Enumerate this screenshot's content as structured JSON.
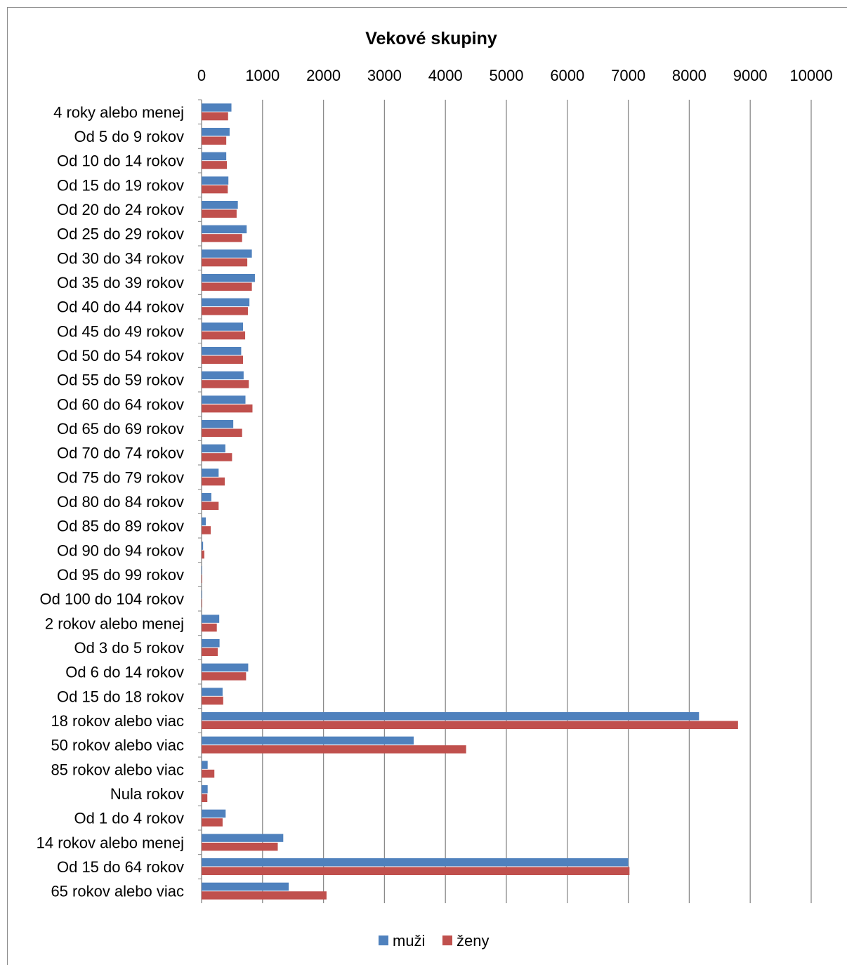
{
  "chart_data": {
    "type": "bar",
    "orientation": "horizontal",
    "title": "Vekové skupiny",
    "xlabel": "",
    "ylabel": "",
    "xlim": [
      0,
      10000
    ],
    "x_ticks": [
      "0",
      "1000",
      "2000",
      "3000",
      "4000",
      "5000",
      "6000",
      "7000",
      "8000",
      "9000",
      "10000"
    ],
    "grid": true,
    "legend_position": "bottom",
    "categories": [
      "4 roky alebo menej",
      "Od 5 do 9 rokov",
      "Od 10 do 14 rokov",
      "Od 15 do 19 rokov",
      "Od 20 do 24 rokov",
      "Od 25 do 29 rokov",
      "Od 30 do 34 rokov",
      "Od 35 do 39 rokov",
      "Od 40 do 44 rokov",
      "Od 45 do 49 rokov",
      "Od 50 do 54 rokov",
      "Od 55 do 59 rokov",
      "Od 60 do 64 rokov",
      "Od 65 do 69 rokov",
      "Od 70 do 74 rokov",
      "Od 75 do 79 rokov",
      "Od 80 do 84 rokov",
      "Od 85 do 89 rokov",
      "Od 90 do 94 rokov",
      "Od 95 do 99 rokov",
      "Od 100 do 104 rokov",
      "2 rokov alebo menej",
      "Od 3 do 5 rokov",
      "Od 6 do 14 rokov",
      "Od 15 do 18 rokov",
      "18 rokov alebo viac",
      "50 rokov alebo viac",
      "85 rokov alebo viac",
      "Nula rokov",
      "Od 1 do 4 rokov",
      "14 rokov alebo menej",
      "Od 15 do 64 rokov",
      "65 rokov alebo viac"
    ],
    "series": [
      {
        "name": "muži",
        "color": "#4f81bd",
        "values": [
          490,
          460,
          405,
          440,
          595,
          740,
          825,
          875,
          785,
          680,
          650,
          690,
          720,
          520,
          390,
          280,
          160,
          70,
          25,
          8,
          2,
          290,
          295,
          765,
          345,
          8160,
          3480,
          100,
          100,
          395,
          1340,
          7000,
          1430
        ]
      },
      {
        "name": "ženy",
        "color": "#c0504d",
        "values": [
          435,
          405,
          415,
          430,
          575,
          665,
          750,
          825,
          760,
          715,
          680,
          775,
          835,
          665,
          500,
          380,
          280,
          150,
          45,
          10,
          2,
          250,
          265,
          730,
          355,
          8800,
          4340,
          210,
          95,
          345,
          1250,
          7020,
          2050
        ]
      }
    ]
  }
}
